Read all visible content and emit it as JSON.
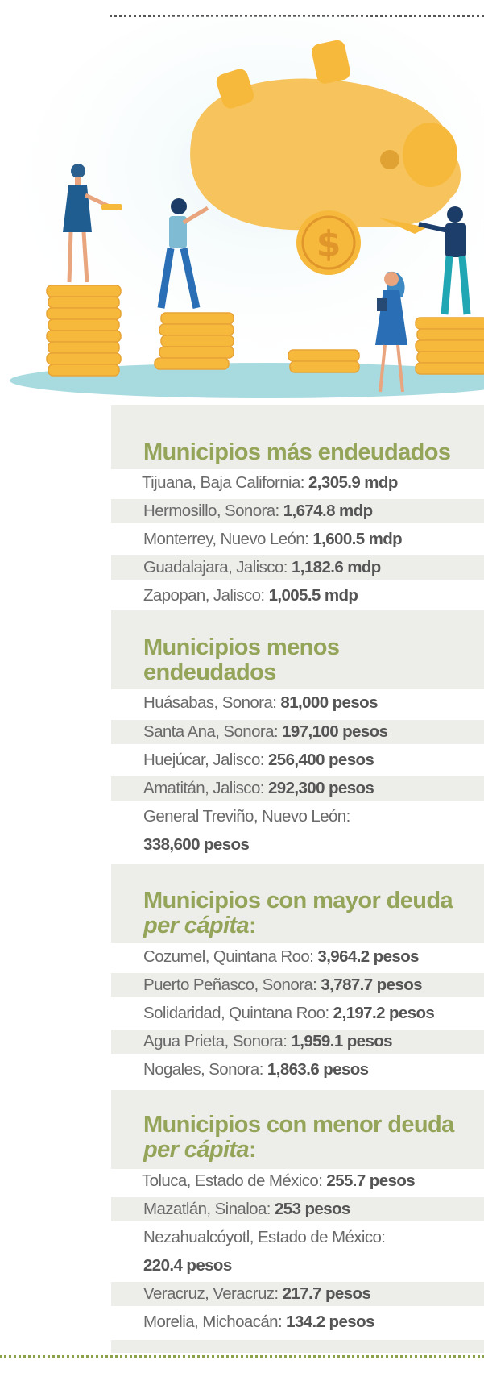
{
  "sections": [
    {
      "title": "Municipios más endeudados",
      "items": [
        {
          "place": "Tijuana, Baja California:",
          "value": "2,305.9 mdp"
        },
        {
          "place": "Hermosillo, Sonora:",
          "value": "1,674.8 mdp"
        },
        {
          "place": "Monterrey, Nuevo León:",
          "value": "1,600.5 mdp"
        },
        {
          "place": "Guadalajara, Jalisco:",
          "value": "1,182.6 mdp"
        },
        {
          "place": "Zapopan, Jalisco:",
          "value": "1,005.5 mdp"
        }
      ]
    },
    {
      "title_line1": "Municipios menos",
      "title_line2": "endeudados",
      "items": [
        {
          "place": "Huásabas, Sonora:",
          "value": "81,000 pesos"
        },
        {
          "place": "Santa Ana, Sonora:",
          "value": "197,100 pesos"
        },
        {
          "place": "Huejúcar, Jalisco:",
          "value": "256,400 pesos"
        },
        {
          "place": "Amatitán, Jalisco:",
          "value": "292,300 pesos"
        },
        {
          "place": "General Treviño, Nuevo León:",
          "value": "338,600 pesos"
        }
      ]
    },
    {
      "title": "Municipios con mayor deuda",
      "title_italic": "per cápita",
      "title_suffix": ":",
      "items": [
        {
          "place": "Cozumel, Quintana Roo:",
          "value": "3,964.2 pesos"
        },
        {
          "place": "Puerto Peñasco, Sonora:",
          "value": "3,787.7 pesos"
        },
        {
          "place": "Solidaridad, Quintana Roo:",
          "value": "2,197.2 pesos"
        },
        {
          "place": "Agua Prieta, Sonora:",
          "value": "1,959.1 pesos"
        },
        {
          "place": "Nogales, Sonora:",
          "value": "1,863.6 pesos"
        }
      ]
    },
    {
      "title": "Municipios con menor deuda",
      "title_italic": "per cápita",
      "title_suffix": ":",
      "items": [
        {
          "place": "Toluca, Estado de México:",
          "value": "255.7 pesos"
        },
        {
          "place": "Mazatlán, Sinaloa:",
          "value": "253 pesos"
        },
        {
          "place": "Nezahualcóyotl, Estado de México:",
          "value": "220.4 pesos"
        },
        {
          "place": "Veracruz, Veracruz:",
          "value": "217.7 pesos"
        },
        {
          "place": "Morelia, Michoacán:",
          "value": "134.2 pesos"
        }
      ]
    }
  ],
  "colors": {
    "heading": "#94a55a",
    "panel": "#ededea",
    "coin": "#f6b93b",
    "pig": "#f7c35c",
    "ground": "#a8dbe0",
    "dots_bottom": "#8ba24a"
  },
  "icons": [
    "piggy-bank-icon",
    "dollar-coin-icon",
    "coin-stack-icon",
    "person-icon"
  ]
}
